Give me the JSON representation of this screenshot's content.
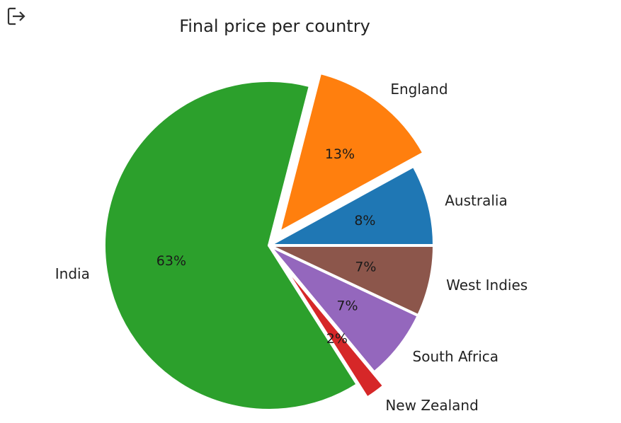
{
  "toolbar": {
    "export_icon": "export-icon"
  },
  "chart_data": {
    "type": "pie",
    "title": "Final price per country",
    "labels": [
      "Australia",
      "England",
      "India",
      "New Zealand",
      "South Africa",
      "West Indies"
    ],
    "values": [
      8,
      13,
      63,
      2,
      7,
      7
    ],
    "percent_labels": [
      "8%",
      "13%",
      "63%",
      "2%",
      "7%",
      "7%"
    ],
    "colors": [
      "#1f77b4",
      "#ff7f0e",
      "#2ca02c",
      "#d62728",
      "#9467bd",
      "#8c564b"
    ],
    "explode": [
      0,
      0.1,
      0,
      0.1,
      0,
      0
    ],
    "start_angle": 0,
    "direction": "counterclockwise",
    "legend": "none"
  }
}
